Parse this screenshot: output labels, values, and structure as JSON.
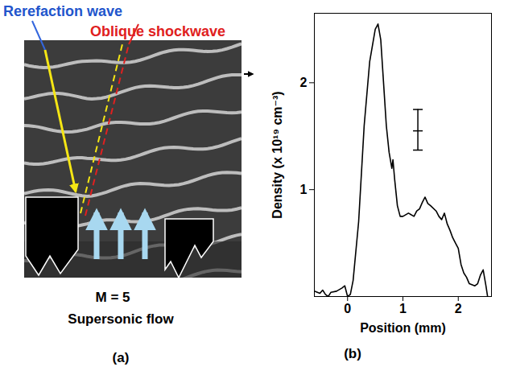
{
  "panel_a": {
    "label": "(a)",
    "rarefaction_label": "Rerefaction wave",
    "shock_label": "Oblique shockwave",
    "flow_mach": "M = 5",
    "flow_label": "Supersonic flow"
  },
  "chart_data": {
    "type": "line",
    "panel_label": "(b)",
    "x_label": "Position (mm)",
    "y_label": "Density (x 10¹⁹ cm⁻³)",
    "x": [
      -0.6,
      -0.5,
      -0.45,
      -0.4,
      -0.35,
      -0.3,
      -0.2,
      -0.1,
      -0.05,
      0.0,
      0.05,
      0.1,
      0.2,
      0.3,
      0.4,
      0.5,
      0.55,
      0.6,
      0.65,
      0.7,
      0.75,
      0.8,
      0.82,
      0.85,
      0.9,
      0.95,
      1.0,
      1.1,
      1.2,
      1.25,
      1.3,
      1.35,
      1.4,
      1.45,
      1.5,
      1.6,
      1.65,
      1.7,
      1.75,
      1.8,
      1.85,
      1.9,
      1.95,
      2.0,
      2.05,
      2.1,
      2.15,
      2.2,
      2.3,
      2.35,
      2.4,
      2.45,
      2.5,
      2.53
    ],
    "values": [
      0.05,
      0.03,
      0.06,
      0.02,
      0.0,
      0.04,
      0.05,
      0.08,
      0.1,
      0.0,
      0.02,
      0.15,
      0.7,
      1.6,
      2.2,
      2.5,
      2.55,
      2.4,
      2.0,
      1.6,
      1.35,
      1.2,
      1.28,
      1.1,
      0.85,
      0.75,
      0.75,
      0.78,
      0.75,
      0.8,
      0.82,
      0.88,
      0.93,
      0.87,
      0.85,
      0.8,
      0.75,
      0.72,
      0.78,
      0.68,
      0.62,
      0.55,
      0.5,
      0.45,
      0.3,
      0.22,
      0.18,
      0.12,
      0.1,
      0.12,
      0.2,
      0.25,
      0.1,
      0.0
    ],
    "color": "#000000",
    "xlim": [
      -0.6,
      2.6
    ],
    "xticks": [
      0,
      1,
      2
    ],
    "ylim": [
      0,
      2.65
    ],
    "yticks": [
      1,
      2
    ],
    "grid": false,
    "error_bar": {
      "x": 1.27,
      "y": 1.55,
      "low": 1.37,
      "high": 1.75
    }
  }
}
